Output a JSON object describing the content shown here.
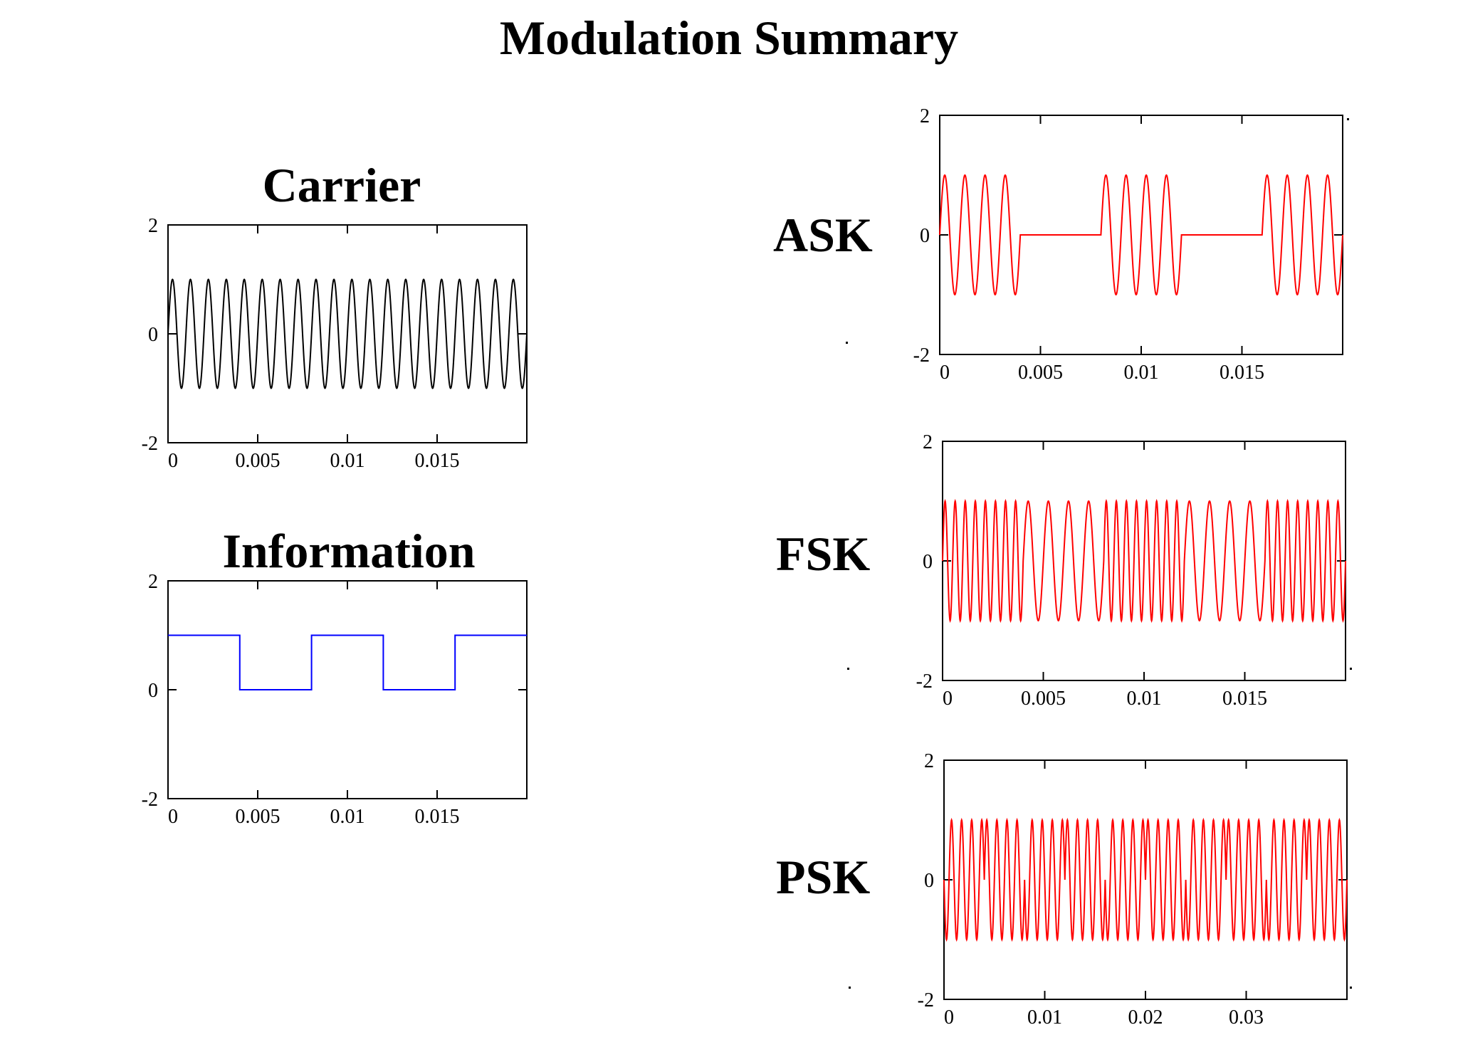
{
  "title": "Modulation Summary",
  "chart_data": [
    {
      "id": "carrier",
      "type": "line",
      "title": "Carrier",
      "side_label": "",
      "color": "#000000",
      "xlim": [
        0,
        0.02
      ],
      "ylim": [
        -2,
        2
      ],
      "xticks": [
        0,
        0.005,
        0.01,
        0.015
      ],
      "xtick_labels": [
        "0",
        "0.005",
        "0.01",
        "0.015"
      ],
      "yticks": [
        -2,
        0,
        2
      ],
      "ytick_labels": [
        "-2",
        "0",
        "2"
      ],
      "signal": "sin(2π·1000·t)",
      "series": [
        {
          "x": [
            0,
            0.0005,
            0.001,
            0.0015,
            0.002,
            0.0025,
            0.003,
            0.0035,
            0.004,
            0.0045,
            0.005,
            0.0055,
            0.006,
            0.0065,
            0.007,
            0.0075,
            0.008,
            0.0085,
            0.009,
            0.0095,
            0.01,
            0.0105,
            0.011,
            0.0115,
            0.012,
            0.0125,
            0.013,
            0.0135,
            0.014,
            0.0145,
            0.015,
            0.0155,
            0.016,
            0.0165,
            0.017,
            0.0175,
            0.018,
            0.0185,
            0.019,
            0.0195,
            0.02
          ],
          "y": [
            0,
            0,
            0,
            0,
            0,
            0,
            0,
            0,
            0,
            0,
            0,
            0,
            0,
            0,
            0,
            0,
            0,
            0,
            0,
            0,
            0,
            0,
            0,
            0,
            0,
            0,
            0,
            0,
            0,
            0,
            0,
            0,
            0,
            0,
            0,
            0,
            0,
            0,
            0,
            0,
            0
          ]
        }
      ]
    },
    {
      "id": "information",
      "type": "line",
      "title": "Information",
      "side_label": "",
      "color": "#0000ff",
      "xlim": [
        0,
        0.02
      ],
      "ylim": [
        -2,
        2
      ],
      "xticks": [
        0,
        0.005,
        0.01,
        0.015
      ],
      "xtick_labels": [
        "0",
        "0.005",
        "0.01",
        "0.015"
      ],
      "yticks": [
        -2,
        0,
        2
      ],
      "ytick_labels": [
        "-2",
        "0",
        "2"
      ],
      "series": [
        {
          "x": [
            0,
            0.004,
            0.004,
            0.008,
            0.008,
            0.012,
            0.012,
            0.016,
            0.016,
            0.02
          ],
          "y": [
            1,
            1,
            0,
            0,
            1,
            1,
            0,
            0,
            1,
            1
          ]
        }
      ]
    },
    {
      "id": "ask",
      "type": "line",
      "title": "",
      "side_label": "ASK",
      "color": "#ff0000",
      "xlim": [
        0,
        0.02
      ],
      "ylim": [
        -2,
        2
      ],
      "xticks": [
        0,
        0.005,
        0.01,
        0.015
      ],
      "xtick_labels": [
        "0",
        "0.005",
        "0.01",
        "0.015"
      ],
      "yticks": [
        -2,
        0,
        2
      ],
      "ytick_labels": [
        "-2",
        "0",
        "2"
      ],
      "bits": [
        1,
        0,
        1,
        0,
        1
      ],
      "bit_duration": 0.004,
      "signal": "bit·sin(2π·1000·t)"
    },
    {
      "id": "fsk",
      "type": "line",
      "title": "",
      "side_label": "FSK",
      "color": "#ff0000",
      "xlim": [
        0,
        0.02
      ],
      "ylim": [
        -2,
        2
      ],
      "xticks": [
        0,
        0.005,
        0.01,
        0.015
      ],
      "xtick_labels": [
        "0",
        "0.005",
        "0.01",
        "0.015"
      ],
      "yticks": [
        -2,
        0,
        2
      ],
      "ytick_labels": [
        "-2",
        "0",
        "2"
      ],
      "bits": [
        1,
        0,
        1,
        0,
        1
      ],
      "bit_duration": 0.004,
      "signal": "sin(2π·f·t), f = 2000 Hz for bit 1, 1000 Hz for bit 0"
    },
    {
      "id": "psk",
      "type": "line",
      "title": "",
      "side_label": "PSK",
      "color": "#ff0000",
      "xlim": [
        0,
        0.04
      ],
      "ylim": [
        -2,
        2
      ],
      "xticks": [
        0,
        0.01,
        0.02,
        0.03
      ],
      "xtick_labels": [
        "0",
        "0.01",
        "0.02",
        "0.03"
      ],
      "yticks": [
        -2,
        0,
        2
      ],
      "ytick_labels": [
        "-2",
        "0",
        "2"
      ],
      "bits": [
        1,
        0,
        1,
        0,
        1,
        0,
        1,
        0,
        1,
        0
      ],
      "bit_duration": 0.004,
      "signal": "sin(2π·1000·t + π·bit)"
    }
  ]
}
